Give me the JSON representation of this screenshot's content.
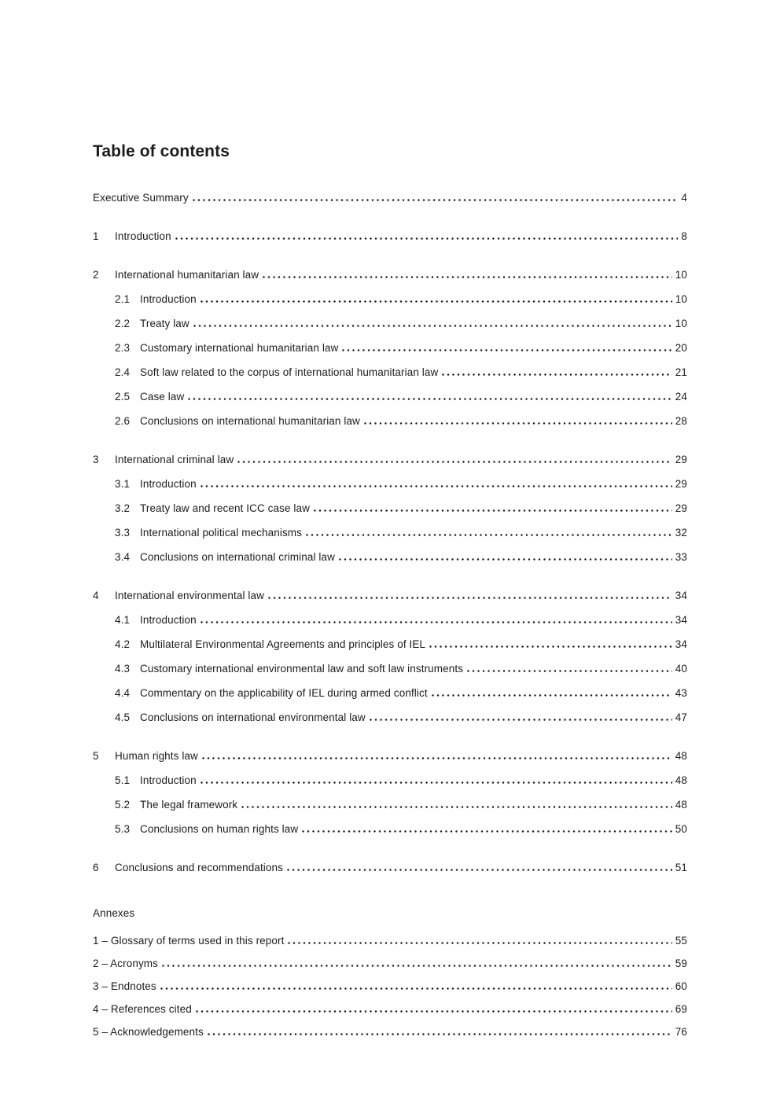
{
  "page": {
    "title": "Table of contents"
  },
  "toc": {
    "entries": [
      {
        "level": 0,
        "num": "",
        "label": "Executive Summary",
        "page": "4",
        "gap": false
      },
      {
        "level": 1,
        "num": "1",
        "label": "Introduction",
        "page": "8",
        "gap": true
      },
      {
        "level": 1,
        "num": "2",
        "label": "International humanitarian law",
        "page": "10",
        "gap": true
      },
      {
        "level": 2,
        "num": "2.1",
        "label": "Introduction",
        "page": "10",
        "gap": false
      },
      {
        "level": 2,
        "num": "2.2",
        "label": "Treaty law",
        "page": "10",
        "gap": false
      },
      {
        "level": 2,
        "num": "2.3",
        "label": "Customary international humanitarian law",
        "page": "20",
        "gap": false
      },
      {
        "level": 2,
        "num": "2.4",
        "label": "Soft law related to the corpus of international humanitarian law",
        "page": "21",
        "gap": false
      },
      {
        "level": 2,
        "num": "2.5",
        "label": "Case law",
        "page": "24",
        "gap": false
      },
      {
        "level": 2,
        "num": "2.6",
        "label": "Conclusions on international humanitarian law",
        "page": "28",
        "gap": false
      },
      {
        "level": 1,
        "num": "3",
        "label": "International criminal law",
        "page": "29",
        "gap": true
      },
      {
        "level": 2,
        "num": "3.1",
        "label": "Introduction",
        "page": "29",
        "gap": false
      },
      {
        "level": 2,
        "num": "3.2",
        "label": "Treaty law and recent ICC case law",
        "page": "29",
        "gap": false
      },
      {
        "level": 2,
        "num": "3.3",
        "label": "International political mechanisms",
        "page": "32",
        "gap": false
      },
      {
        "level": 2,
        "num": "3.4",
        "label": "Conclusions on international criminal law",
        "page": "33",
        "gap": false
      },
      {
        "level": 1,
        "num": "4",
        "label": "International environmental law",
        "page": "34",
        "gap": true
      },
      {
        "level": 2,
        "num": "4.1",
        "label": "Introduction",
        "page": "34",
        "gap": false
      },
      {
        "level": 2,
        "num": "4.2",
        "label": "Multilateral Environmental Agreements and principles of IEL",
        "page": "34",
        "gap": false
      },
      {
        "level": 2,
        "num": "4.3",
        "label": "Customary international environmental law and soft law instruments",
        "page": "40",
        "gap": false
      },
      {
        "level": 2,
        "num": "4.4",
        "label": "Commentary on the applicability of IEL during armed conflict",
        "page": "43",
        "gap": false
      },
      {
        "level": 2,
        "num": "4.5",
        "label": "Conclusions on international environmental law",
        "page": "47",
        "gap": false
      },
      {
        "level": 1,
        "num": "5",
        "label": "Human rights law",
        "page": "48",
        "gap": true
      },
      {
        "level": 2,
        "num": "5.1",
        "label": "Introduction",
        "page": "48",
        "gap": false
      },
      {
        "level": 2,
        "num": "5.2",
        "label": "The legal framework",
        "page": "48",
        "gap": false
      },
      {
        "level": 2,
        "num": "5.3",
        "label": "Conclusions on human rights law",
        "page": "50",
        "gap": false
      },
      {
        "level": 1,
        "num": "6",
        "label": "Conclusions and recommendations",
        "page": "51",
        "gap": true
      }
    ],
    "annexes_heading": "Annexes",
    "annex_entries": [
      {
        "label": "1 – Glossary of terms used in this report",
        "page": "55"
      },
      {
        "label": "2 – Acronyms",
        "page": "59"
      },
      {
        "label": "3 – Endnotes",
        "page": "60"
      },
      {
        "label": "4 – References cited",
        "page": "69"
      },
      {
        "label": "5 – Acknowledgements",
        "page": "76"
      }
    ]
  }
}
